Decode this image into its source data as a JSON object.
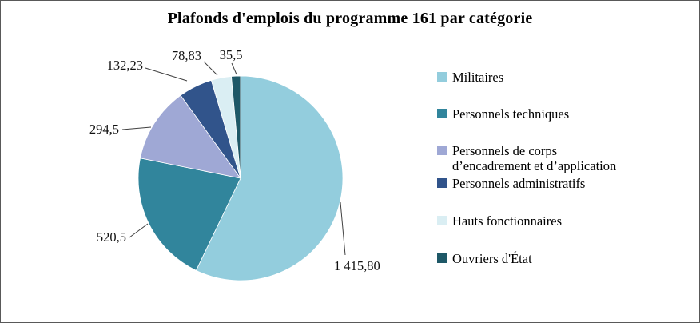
{
  "chart_data": {
    "type": "pie",
    "title": "Plafonds d'emplois du programme 161 par catégorie",
    "categories": [
      "Militaires",
      "Personnels techniques",
      "Personnels de corps d'encadrement et d'application",
      "Personnels administratifs",
      "Hauts fonctionnaires",
      "Ouvriers d'État"
    ],
    "legend_lines": [
      [
        "Militaires"
      ],
      [
        "Personnels techniques"
      ],
      [
        "Personnels de corps",
        "d’encadrement et d’application"
      ],
      [
        "Personnels administratifs"
      ],
      [
        "Hauts fonctionnaires"
      ],
      [
        "Ouvriers d'État"
      ]
    ],
    "values": [
      1415.8,
      520.5,
      294.5,
      132.23,
      78.83,
      35.5
    ],
    "value_labels": [
      "1 415,80",
      "520,5",
      "294,5",
      "132,23",
      "78,83",
      "35,5"
    ],
    "colors": [
      "#93CDDD",
      "#31859C",
      "#9FA8D5",
      "#31548B",
      "#DAEEF3",
      "#1E5867"
    ],
    "total": 2477.36,
    "start_angle_deg": 0,
    "direction": "clockwise",
    "legend_position": "right",
    "grid": false
  }
}
